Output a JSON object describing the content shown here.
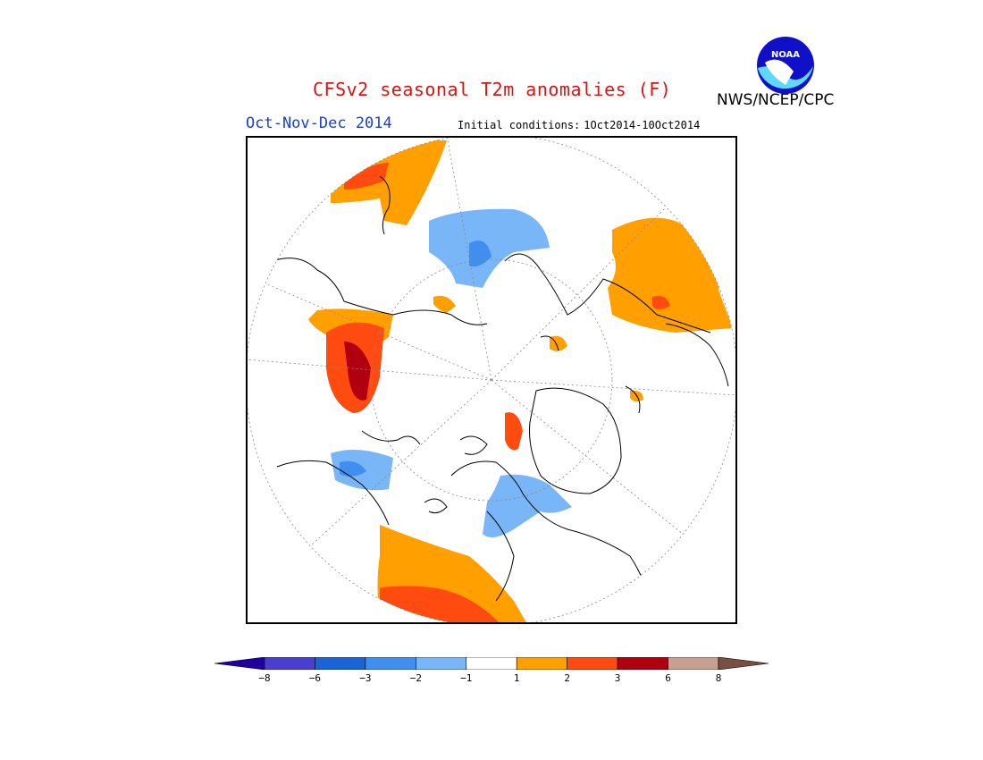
{
  "title": "CFSv2 seasonal T2m anomalies (F)",
  "agency": "NWS/NCEP/CPC",
  "logo": {
    "icon": "noaa-logo-icon",
    "text": "NOAA"
  },
  "period": "Oct-Nov-Dec 2014",
  "initial_conditions": {
    "label": "Initial conditions:",
    "value": "1Oct2014-10Oct2014"
  },
  "colorbar": {
    "ticks": [
      "-8",
      "-6",
      "-3",
      "-2",
      "-1",
      "1",
      "2",
      "3",
      "6",
      "8"
    ],
    "colors": [
      "#1f00a0",
      "#4a3ed0",
      "#1a64d8",
      "#3f8ef0",
      "#78b6f8",
      "#ffffff",
      "#ffa000",
      "#ff4a10",
      "#b00010",
      "#c8a090",
      "#7a4e40"
    ]
  },
  "map": {
    "projection": "north-polar-stereographic",
    "colors": {
      "warm1": "#ffa000",
      "warm2": "#ff4a10",
      "warm3": "#b00010",
      "cool1": "#78b6f8",
      "cool2": "#3f8ef0"
    }
  }
}
